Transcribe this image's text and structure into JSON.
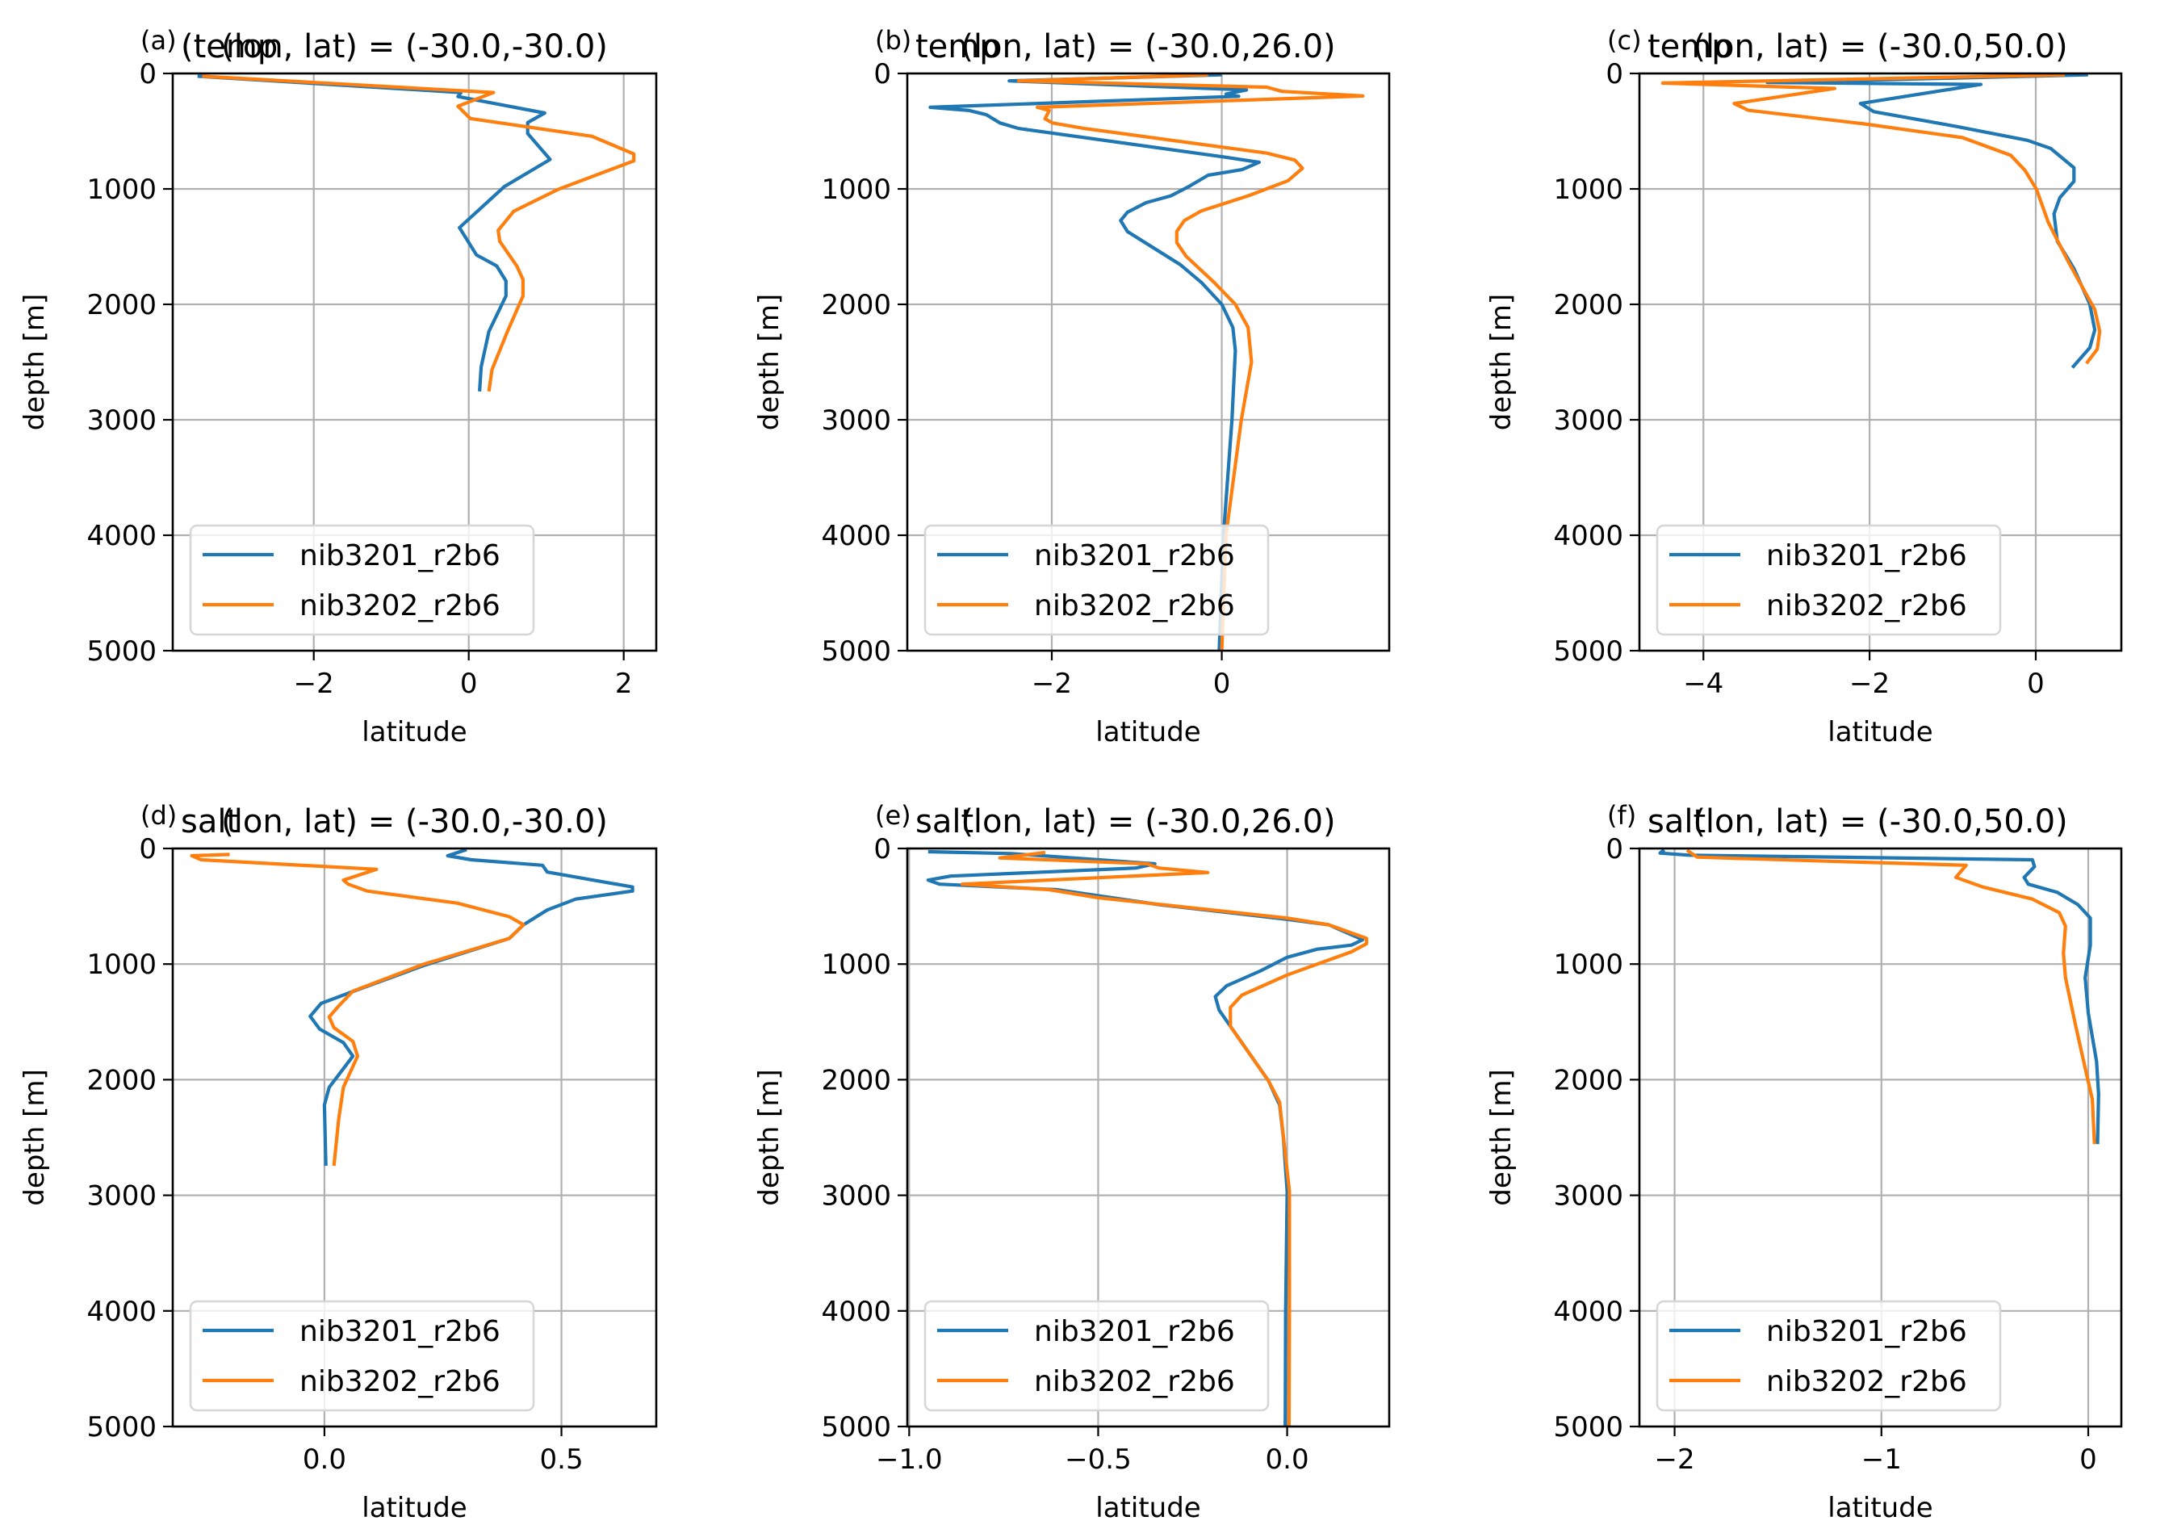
{
  "figure": {
    "series_names": [
      "nib3201_r2b6",
      "nib3202_r2b6"
    ],
    "series_colors": [
      "#1f77b4",
      "#ff7f0e"
    ],
    "grid_color": "#b0b0b0"
  },
  "chart_data": [
    {
      "type": "line",
      "panel_label": "(a)",
      "title_var": "(temp",
      "title": "(lon, lat) = (-30.0,-30.0)",
      "xlabel": "latitude",
      "ylabel": "depth [m]",
      "xlim": [
        -3.82,
        2.42
      ],
      "ylim": [
        5000,
        0
      ],
      "xticks": [
        -2,
        0,
        2
      ],
      "xtick_labels": [
        "−2",
        "0",
        "2"
      ],
      "yticks": [
        0,
        1000,
        2000,
        3000,
        4000,
        5000
      ],
      "ytick_labels": [
        "0",
        "1000",
        "2000",
        "3000",
        "4000",
        "5000"
      ],
      "grid": true,
      "legend_loc": "lower-left",
      "series": [
        {
          "name": "nib3201_r2b6",
          "x": [
            -3.5,
            -0.1,
            -0.14,
            0.98,
            0.76,
            0.76,
            1.05,
            0.46,
            -0.12,
            0.1,
            0.36,
            0.48,
            0.48,
            0.26,
            0.16,
            0.14
          ],
          "depth": [
            24,
            165,
            200,
            343,
            425,
            520,
            745,
            980,
            1336,
            1572,
            1667,
            1797,
            1927,
            2234,
            2541,
            2754
          ]
        },
        {
          "name": "nib3202_r2b6",
          "x": [
            -3.44,
            0.32,
            -0.14,
            0.02,
            1.59,
            2.13,
            2.13,
            1.15,
            0.58,
            0.38,
            0.4,
            0.62,
            0.7,
            0.7,
            0.5,
            0.3,
            0.26
          ],
          "depth": [
            24,
            165,
            284,
            390,
            544,
            697,
            757,
            1005,
            1194,
            1359,
            1454,
            1667,
            1785,
            1927,
            2234,
            2565,
            2754
          ]
        }
      ]
    },
    {
      "type": "line",
      "panel_label": "(b)",
      "title_var": "temp",
      "title": "(lon, lat) = (-30.0,26.0)",
      "xlabel": "latitude",
      "ylabel": "depth [m]",
      "xlim": [
        -3.7,
        1.97
      ],
      "ylim": [
        5000,
        0
      ],
      "xticks": [
        -2,
        0
      ],
      "xtick_labels": [
        "−2",
        "0"
      ],
      "yticks": [
        0,
        1000,
        2000,
        3000,
        4000,
        5000
      ],
      "ytick_labels": [
        "0",
        "1000",
        "2000",
        "3000",
        "4000",
        "5000"
      ],
      "grid": true,
      "legend_loc": "lower-left",
      "series": [
        {
          "name": "nib3201_r2b6",
          "x": [
            0.0,
            -2.5,
            0.29,
            0.05,
            0.2,
            -3.43,
            -2.97,
            -2.77,
            -2.61,
            -2.39,
            0.05,
            0.44,
            0.24,
            -0.16,
            -0.38,
            -0.6,
            -0.89,
            -1.11,
            -1.19,
            -1.11,
            -0.49,
            -0.24,
            0.0,
            0.13,
            0.16,
            0.12,
            0.02,
            -0.03
          ],
          "depth": [
            12,
            64,
            143,
            179,
            198,
            293,
            321,
            357,
            429,
            476,
            726,
            769,
            833,
            881,
            976,
            1060,
            1119,
            1202,
            1274,
            1369,
            1655,
            1810,
            2000,
            2200,
            2400,
            3000,
            4000,
            5000
          ]
        },
        {
          "name": "nib3202_r2b6",
          "x": [
            -0.16,
            -2.39,
            0.53,
            0.71,
            1.66,
            -2.17,
            -2.03,
            -2.08,
            -1.99,
            -1.62,
            0.53,
            0.86,
            0.95,
            0.78,
            0.31,
            -0.24,
            -0.44,
            -0.53,
            -0.53,
            -0.42,
            -0.09,
            0.16,
            0.31,
            0.35,
            0.23,
            0.05,
            0.0
          ],
          "depth": [
            12,
            64,
            119,
            155,
            195,
            293,
            321,
            393,
            429,
            476,
            690,
            750,
            821,
            929,
            1060,
            1190,
            1274,
            1369,
            1464,
            1583,
            1810,
            2000,
            2200,
            2500,
            3000,
            4000,
            5000
          ]
        }
      ]
    },
    {
      "type": "line",
      "panel_label": "(c)",
      "title_var": "temp",
      "title": "(lon, lat) = (-30.0,50.0)",
      "xlabel": "latitude",
      "ylabel": "depth [m]",
      "xlim": [
        -4.77,
        1.03
      ],
      "ylim": [
        5000,
        0
      ],
      "xticks": [
        -4,
        -2,
        0
      ],
      "xtick_labels": [
        "−4",
        "−2",
        "0"
      ],
      "yticks": [
        0,
        1000,
        2000,
        3000,
        4000,
        5000
      ],
      "ytick_labels": [
        "0",
        "1000",
        "2000",
        "3000",
        "4000",
        "5000"
      ],
      "grid": true,
      "legend_loc": "lower-left",
      "series": [
        {
          "name": "nib3201_r2b6",
          "x": [
            0.63,
            -3.23,
            -0.66,
            -2.11,
            -1.95,
            -0.94,
            -0.1,
            0.18,
            0.46,
            0.46,
            0.29,
            0.22,
            0.26,
            0.46,
            0.65,
            0.71,
            0.65,
            0.44
          ],
          "depth": [
            12,
            78,
            95,
            260,
            331,
            461,
            579,
            650,
            816,
            934,
            1076,
            1217,
            1454,
            1690,
            1998,
            2222,
            2376,
            2548
          ]
        },
        {
          "name": "nib3202_r2b6",
          "x": [
            0.35,
            -4.49,
            -2.42,
            -3.63,
            -3.46,
            -2.06,
            -0.88,
            -0.3,
            -0.13,
            0.01,
            0.15,
            0.4,
            0.71,
            0.77,
            0.74,
            0.61
          ],
          "depth": [
            12,
            83,
            130,
            260,
            319,
            437,
            556,
            709,
            839,
            1005,
            1288,
            1643,
            2045,
            2234,
            2388,
            2512
          ]
        }
      ]
    },
    {
      "type": "line",
      "panel_label": "(d)",
      "title_var": "salt",
      "title": "(lon, lat) = (-30.0,-30.0)",
      "xlabel": "latitude",
      "ylabel": "depth [m]",
      "xlim": [
        -0.32,
        0.7
      ],
      "ylim": [
        5000,
        0
      ],
      "xticks": [
        0.0,
        0.5
      ],
      "xtick_labels": [
        "0.0",
        "0.5"
      ],
      "yticks": [
        0,
        1000,
        2000,
        3000,
        4000,
        5000
      ],
      "ytick_labels": [
        "0",
        "1000",
        "2000",
        "3000",
        "4000",
        "5000"
      ],
      "grid": true,
      "legend_loc": "lower-left",
      "series": [
        {
          "name": "nib3201_r2b6",
          "x": [
            0.3,
            0.26,
            0.31,
            0.46,
            0.47,
            0.65,
            0.65,
            0.53,
            0.47,
            0.42,
            0.39,
            0.21,
            0.07,
            -0.007,
            -0.03,
            -0.01,
            0.04,
            0.06,
            0.01,
            0.0,
            0.003
          ],
          "depth": [
            10,
            63,
            98,
            145,
            204,
            333,
            368,
            438,
            532,
            660,
            778,
            1012,
            1222,
            1340,
            1452,
            1562,
            1679,
            1796,
            2066,
            2218,
            2745
          ]
        },
        {
          "name": "nib3202_r2b6",
          "x": [
            -0.2,
            -0.28,
            -0.26,
            0.11,
            0.04,
            0.05,
            0.09,
            0.28,
            0.39,
            0.42,
            0.39,
            0.21,
            0.06,
            0.03,
            0.01,
            0.02,
            0.06,
            0.07,
            0.04,
            0.03,
            0.02
          ],
          "depth": [
            52,
            63,
            98,
            180,
            274,
            309,
            368,
            473,
            590,
            660,
            778,
            1000,
            1234,
            1363,
            1457,
            1550,
            1668,
            1796,
            2066,
            2346,
            2745
          ]
        }
      ]
    },
    {
      "type": "line",
      "panel_label": "(e)",
      "title_var": "salt",
      "title": "(lon, lat) = (-30.0,26.0)",
      "xlabel": "latitude",
      "ylabel": "depth [m]",
      "xlim": [
        -1.005,
        0.27
      ],
      "ylim": [
        5000,
        0
      ],
      "xticks": [
        -1.0,
        -0.5,
        0.0
      ],
      "xtick_labels": [
        "−1.0",
        "−0.5",
        "0.0"
      ],
      "yticks": [
        0,
        1000,
        2000,
        3000,
        4000,
        5000
      ],
      "ytick_labels": [
        "0",
        "1000",
        "2000",
        "3000",
        "4000",
        "5000"
      ],
      "grid": true,
      "legend_loc": "lower-left",
      "series": [
        {
          "name": "nib3201_r2b6",
          "x": [
            -0.95,
            -0.73,
            -0.35,
            -0.4,
            -0.89,
            -0.95,
            -0.92,
            -0.61,
            -0.34,
            0.0,
            0.11,
            0.2,
            0.17,
            0.08,
            0.0,
            -0.07,
            -0.16,
            -0.19,
            -0.18,
            -0.14,
            -0.05,
            -0.02,
            -0.01,
            0.0,
            -0.004,
            -0.005
          ],
          "depth": [
            28,
            44,
            133,
            169,
            239,
            274,
            309,
            356,
            485,
            613,
            660,
            789,
            836,
            871,
            941,
            1058,
            1187,
            1281,
            1398,
            1585,
            2007,
            2218,
            2498,
            2967,
            4000,
            5000
          ]
        },
        {
          "name": "nib3202_r2b6",
          "x": [
            -0.64,
            -0.76,
            -0.37,
            -0.34,
            -0.21,
            -0.86,
            -0.63,
            -0.5,
            0.0,
            0.11,
            0.21,
            0.21,
            0.17,
            0.0,
            -0.12,
            -0.15,
            -0.15,
            -0.1,
            -0.05,
            -0.02,
            0.006,
            0.006,
            0.005
          ],
          "depth": [
            35,
            82,
            133,
            169,
            208,
            309,
            356,
            426,
            602,
            660,
            778,
            824,
            894,
            1094,
            1269,
            1375,
            1539,
            1773,
            2007,
            2194,
            2967,
            4000,
            5000
          ]
        }
      ]
    },
    {
      "type": "line",
      "panel_label": "(f)",
      "title_var": "salt",
      "title": "(lon, lat) = (-30.0,50.0)",
      "xlabel": "latitude",
      "ylabel": "depth [m]",
      "xlim": [
        -2.17,
        0.16
      ],
      "ylim": [
        5000,
        0
      ],
      "xticks": [
        -2,
        -1,
        0
      ],
      "xtick_labels": [
        "−2",
        "−1",
        "0"
      ],
      "yticks": [
        0,
        1000,
        2000,
        3000,
        4000,
        5000
      ],
      "ytick_labels": [
        "0",
        "1000",
        "2000",
        "3000",
        "4000",
        "5000"
      ],
      "grid": true,
      "legend_loc": "lower-left",
      "series": [
        {
          "name": "nib3201_r2b6",
          "x": [
            -2.05,
            -2.07,
            -1.93,
            -0.27,
            -0.26,
            -0.31,
            -0.29,
            -0.15,
            -0.05,
            0.01,
            0.01,
            -0.015,
            0.0,
            0.04,
            0.05,
            0.045
          ],
          "depth": [
            12,
            40,
            58,
            98,
            157,
            250,
            309,
            379,
            485,
            602,
            836,
            1117,
            1422,
            1843,
            2124,
            2557
          ]
        },
        {
          "name": "nib3202_r2b6",
          "x": [
            -1.94,
            -1.89,
            -1.25,
            -0.59,
            -0.64,
            -0.51,
            -0.27,
            -0.14,
            -0.11,
            -0.12,
            -0.11,
            -0.06,
            -0.01,
            0.02,
            0.03
          ],
          "depth": [
            16,
            75,
            110,
            145,
            250,
            333,
            438,
            555,
            672,
            906,
            1117,
            1539,
            1937,
            2171,
            2557
          ]
        }
      ]
    }
  ]
}
